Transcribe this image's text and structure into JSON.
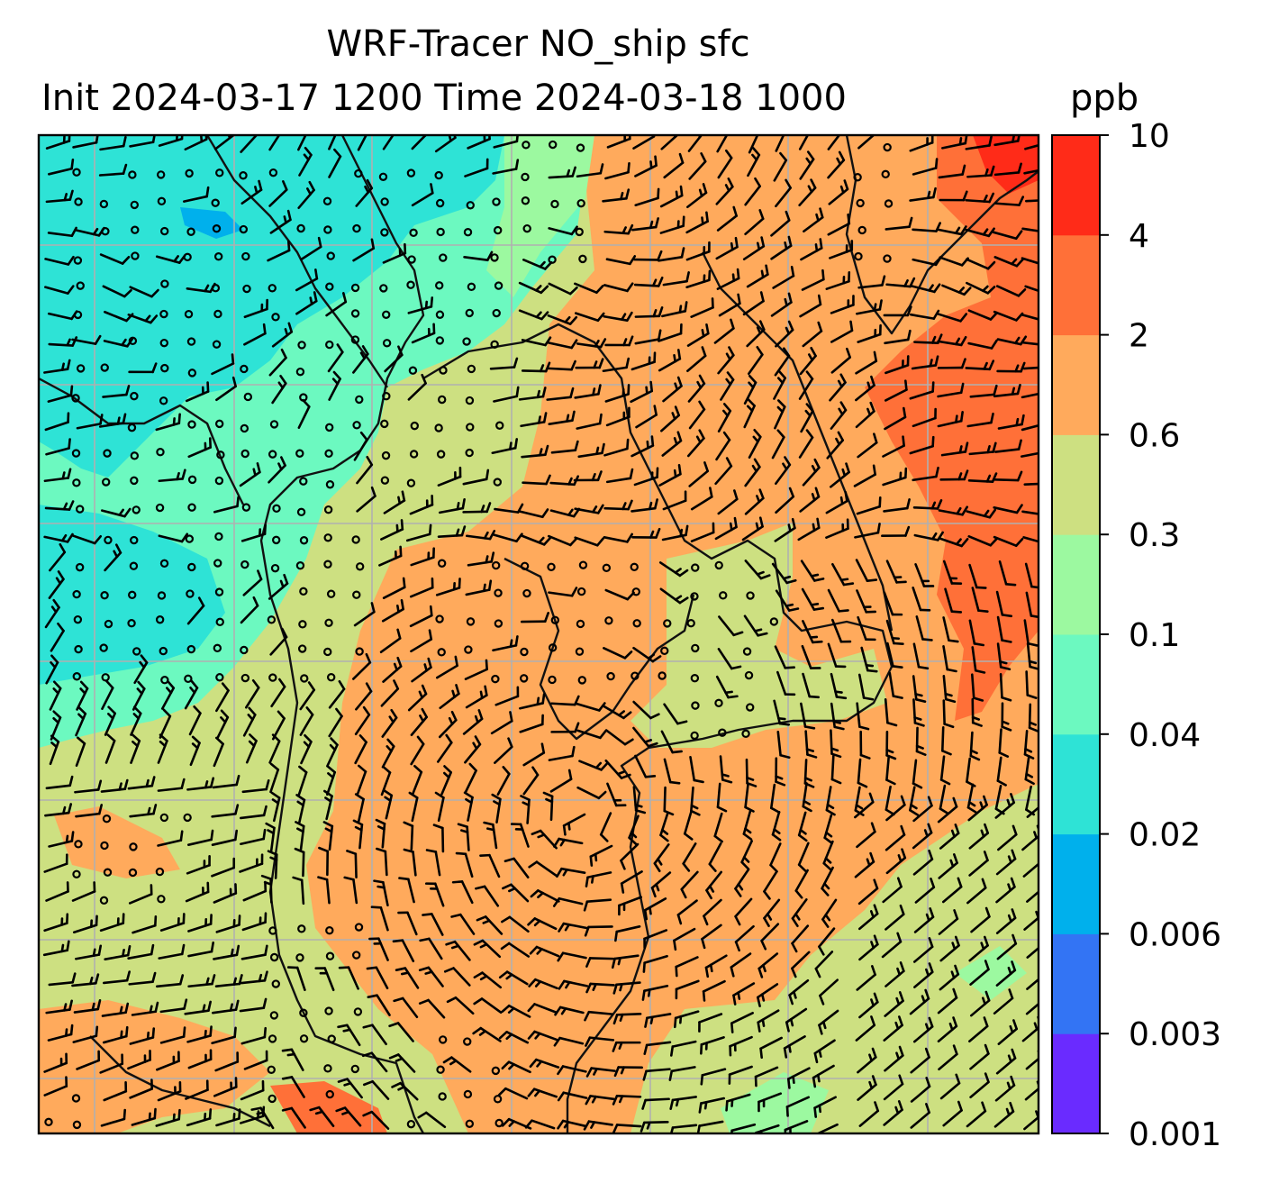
{
  "chart_data": {
    "type": "heatmap",
    "title_line1": "WRF-Tracer NO_ship sfc",
    "title_line2": "Init 2024-03-17 1200 Time 2024-03-18 1000",
    "units": "ppb",
    "colorbar": {
      "levels": [
        "0.001",
        "0.003",
        "0.006",
        "0.02",
        "0.04",
        "0.1",
        "0.3",
        "0.6",
        "2",
        "4",
        "10"
      ],
      "colors": [
        "#6a2bff",
        "#3374f4",
        "#00b0ec",
        "#2ee3d6",
        "#6cf9c0",
        "#9cf9a0",
        "#cde081",
        "#ffaa5c",
        "#ff7038",
        "#ff2b18"
      ]
    },
    "gridlines": "on",
    "overlay": "wind barbs (calm circles in light-wind regions)",
    "field_regions": [
      {
        "level_band": "0.02-0.04",
        "area": "northwest"
      },
      {
        "level_band": "0.04-0.1",
        "area": "west and north-central"
      },
      {
        "level_band": "0.3-0.6",
        "area": "southwest and southeast"
      },
      {
        "level_band": "0.6-2",
        "area": "center, northeast and south"
      },
      {
        "level_band": "2-4",
        "area": "eastern edge"
      },
      {
        "level_band": "4-10",
        "area": "northeast corner"
      }
    ]
  },
  "colors": {
    "frame": "#000000",
    "grid": "#b0b0b0",
    "coast": "#111111"
  }
}
